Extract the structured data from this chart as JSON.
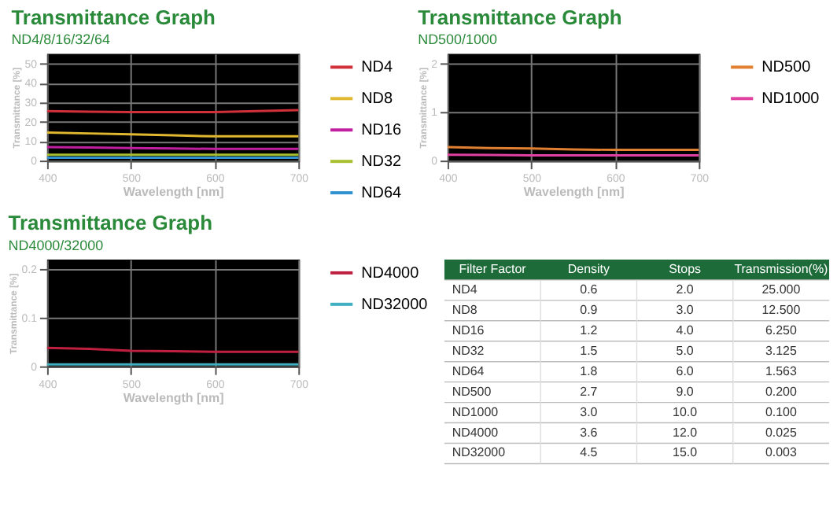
{
  "chart_data": [
    {
      "type": "line",
      "title": "Transmittance Graph",
      "subtitle": "ND4/8/16/32/64",
      "xlabel": "Wavelength [nm]",
      "ylabel": "Transmittance [%]",
      "x": [
        400,
        450,
        500,
        550,
        600,
        650,
        700
      ],
      "xlim": [
        400,
        700
      ],
      "ylim": [
        0,
        55
      ],
      "xticks": [
        400,
        500,
        600,
        700
      ],
      "yticks": [
        0,
        10,
        20,
        30,
        40,
        50
      ],
      "grid": true,
      "legend": "right",
      "series": [
        {
          "name": "ND4",
          "color": "#d0303a",
          "values": [
            25.5,
            25.2,
            25,
            25,
            25,
            25.5,
            26
          ]
        },
        {
          "name": "ND8",
          "color": "#e0b830",
          "values": [
            14.5,
            14,
            13.5,
            13,
            12.5,
            12.5,
            12.5
          ]
        },
        {
          "name": "ND16",
          "color": "#c020a0",
          "values": [
            7,
            6.8,
            6.5,
            6.3,
            6,
            6,
            6
          ]
        },
        {
          "name": "ND32",
          "color": "#a8c030",
          "values": [
            3,
            3,
            3,
            3,
            3,
            3,
            3
          ]
        },
        {
          "name": "ND64",
          "color": "#3090d0",
          "values": [
            1.5,
            1.5,
            1.5,
            1.5,
            1.5,
            1.5,
            1.5
          ]
        }
      ]
    },
    {
      "type": "line",
      "title": "Transmittance Graph",
      "subtitle": "ND500/1000",
      "xlabel": "Wavelength [nm]",
      "ylabel": "Transmittance [%]",
      "x": [
        400,
        450,
        500,
        550,
        600,
        650,
        700
      ],
      "xlim": [
        400,
        700
      ],
      "ylim": [
        0,
        2.2
      ],
      "xticks": [
        400,
        500,
        600,
        700
      ],
      "yticks": [
        0,
        1,
        2
      ],
      "grid": true,
      "legend": "right",
      "series": [
        {
          "name": "ND500",
          "color": "#e08030",
          "values": [
            0.28,
            0.26,
            0.25,
            0.23,
            0.22,
            0.22,
            0.22
          ]
        },
        {
          "name": "ND1000",
          "color": "#e040a0",
          "values": [
            0.12,
            0.115,
            0.11,
            0.11,
            0.11,
            0.11,
            0.11
          ]
        }
      ]
    },
    {
      "type": "line",
      "title": "Transmittance Graph",
      "subtitle": "ND4000/32000",
      "xlabel": "Wavelength [nm]",
      "ylabel": "Transmittance [%]",
      "x": [
        400,
        450,
        500,
        550,
        600,
        650,
        700
      ],
      "xlim": [
        400,
        700
      ],
      "ylim": [
        0,
        0.22
      ],
      "xticks": [
        400,
        500,
        600,
        700
      ],
      "yticks": [
        0,
        0.1,
        0.2
      ],
      "grid": true,
      "legend": "right",
      "series": [
        {
          "name": "ND4000",
          "color": "#c02040",
          "values": [
            0.038,
            0.036,
            0.032,
            0.031,
            0.03,
            0.03,
            0.03
          ]
        },
        {
          "name": "ND32000",
          "color": "#40b0c0",
          "values": [
            0.004,
            0.004,
            0.004,
            0.004,
            0.004,
            0.004,
            0.004
          ]
        }
      ]
    },
    {
      "type": "other",
      "ylabel": "Filter Factor",
      "categories": [
        "ND4",
        "ND8",
        "ND16",
        "ND32",
        "ND64",
        "ND500",
        "ND1000",
        "ND4000",
        "ND32000"
      ],
      "data_labels": true,
      "series": [
        {
          "name": "Density",
          "values": [
            0.6,
            0.9,
            1.2,
            1.5,
            1.8,
            2.7,
            3.0,
            3.6,
            4.5
          ],
          "value_labels": [
            "0.6",
            "0.9",
            "1.2",
            "1.5",
            "1.8",
            "2.7",
            "3.0",
            "3.6",
            "4.5"
          ]
        },
        {
          "name": "Stops",
          "values": [
            2,
            3,
            4,
            5,
            6,
            9,
            10,
            12,
            15
          ],
          "value_labels": [
            "2.0",
            "3.0",
            "4.0",
            "5.0",
            "6.0",
            "9.0",
            "10.0",
            "12.0",
            "15.0"
          ]
        },
        {
          "name": "Transmission(%)",
          "values": [
            25,
            12.5,
            6.25,
            3.125,
            1.563,
            0.2,
            0.1,
            0.025,
            0.003
          ],
          "value_labels": [
            "25.000",
            "12.500",
            "6.250",
            "3.125",
            "1.563",
            "0.200",
            "0.100",
            "0.025",
            "0.003"
          ]
        }
      ]
    }
  ]
}
